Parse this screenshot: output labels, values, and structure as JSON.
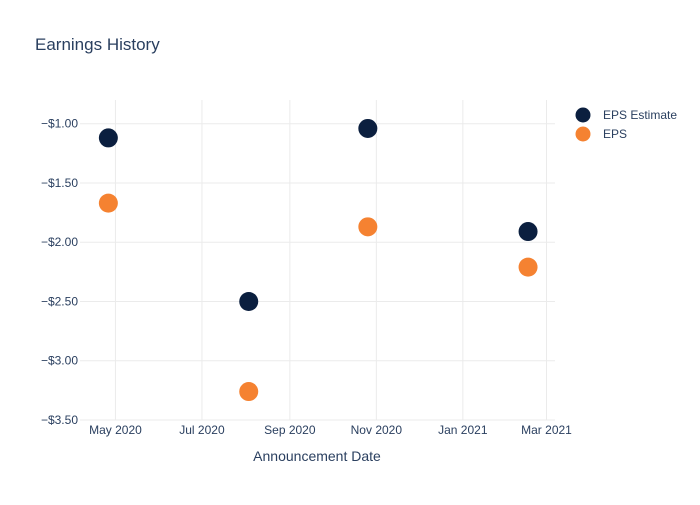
{
  "chart_data": {
    "type": "scatter",
    "title": "Earnings History",
    "xlabel": "Announcement Date",
    "ylabel": "",
    "x_tick_labels": [
      "May 2020",
      "Jul 2020",
      "Sep 2020",
      "Nov 2020",
      "Jan 2021",
      "Mar 2021"
    ],
    "x_tick_dates": [
      "2020-05-01",
      "2020-07-01",
      "2020-09-01",
      "2020-11-01",
      "2021-01-01",
      "2021-03-01"
    ],
    "xlim": [
      "2020-04-06",
      "2021-03-07"
    ],
    "y_ticks": [
      -1.0,
      -1.5,
      -2.0,
      -2.5,
      -3.0,
      -3.5
    ],
    "y_tick_labels": [
      "−$1.00",
      "−$1.50",
      "−$2.00",
      "−$2.50",
      "−$3.00",
      "−$3.50"
    ],
    "ylim": [
      -3.5,
      -0.8
    ],
    "grid": true,
    "legend_position": "top-right",
    "series": [
      {
        "name": "EPS Estimate",
        "color": "#0b1f3f",
        "points": [
          {
            "x": "2020-04-26",
            "y": -1.12
          },
          {
            "x": "2020-08-03",
            "y": -2.5
          },
          {
            "x": "2020-10-26",
            "y": -1.04
          },
          {
            "x": "2021-02-16",
            "y": -1.91
          }
        ]
      },
      {
        "name": "EPS",
        "color": "#f58231",
        "points": [
          {
            "x": "2020-04-26",
            "y": -1.67
          },
          {
            "x": "2020-08-03",
            "y": -3.26
          },
          {
            "x": "2020-10-26",
            "y": -1.87
          },
          {
            "x": "2021-02-16",
            "y": -2.21
          }
        ]
      }
    ]
  }
}
